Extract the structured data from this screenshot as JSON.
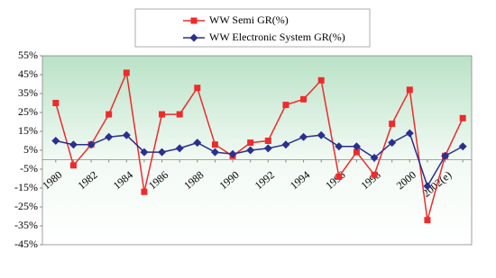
{
  "chart_data": {
    "type": "line",
    "categories": [
      "1980",
      null,
      "1982",
      null,
      "1984",
      null,
      "1986",
      null,
      "1988",
      null,
      "1990",
      null,
      "1992",
      null,
      "1994",
      null,
      "1996",
      null,
      "1998",
      null,
      "2000",
      null,
      "2002(e)",
      null
    ],
    "series": [
      {
        "name": "WW Semi GR(%)",
        "color": "#ee2b2b",
        "marker": "square",
        "values": [
          30,
          -3,
          8,
          24,
          46,
          -17,
          24,
          24,
          38,
          8,
          2,
          9,
          10,
          29,
          32,
          42,
          -9,
          4,
          -8,
          19,
          37,
          -32,
          2,
          22
        ]
      },
      {
        "name": "WW Electronic System GR(%)",
        "color": "#2b2f8f",
        "marker": "diamond",
        "values": [
          10,
          8,
          8,
          12,
          13,
          4,
          4,
          6,
          9,
          4,
          3,
          5,
          6,
          8,
          12,
          13,
          7,
          7,
          1,
          9,
          14,
          -14,
          2,
          7
        ]
      }
    ],
    "ylim": [
      -45,
      55
    ],
    "yticks": [
      {
        "value": 55,
        "label": "55%"
      },
      {
        "value": 45,
        "label": "45%"
      },
      {
        "value": 35,
        "label": "35%"
      },
      {
        "value": 25,
        "label": "25%"
      },
      {
        "value": 15,
        "label": "15%"
      },
      {
        "value": 5,
        "label": "5%"
      },
      {
        "value": -5,
        "label": "-5%"
      },
      {
        "value": -15,
        "label": "-15%"
      },
      {
        "value": -25,
        "label": "-25%"
      },
      {
        "value": -35,
        "label": "-35%"
      },
      {
        "value": -45,
        "label": "-45%"
      }
    ]
  }
}
